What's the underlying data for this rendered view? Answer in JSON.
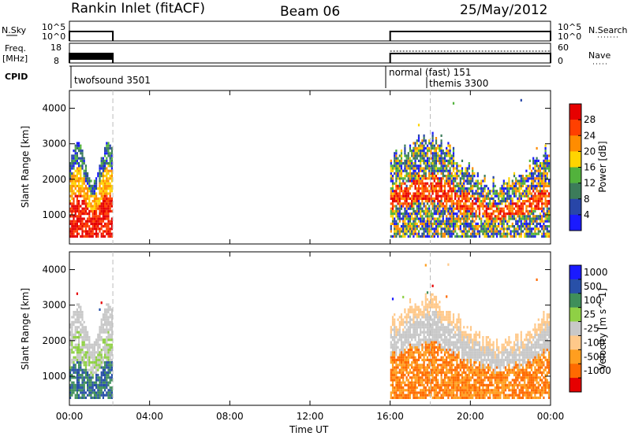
{
  "header": {
    "station": "Rankin Inlet (fitACF)",
    "beam": "Beam 06",
    "date": "25/May/2012"
  },
  "panels": {
    "nsky": {
      "left_label": "N.Sky",
      "right_label": "N.Search",
      "left_ticks": [
        "10^5",
        "10^0"
      ],
      "right_ticks": [
        "10^5",
        "10^0"
      ]
    },
    "freq": {
      "left_label_1": "Freq.",
      "left_label_2": "[MHz]",
      "right_label": "Nave",
      "left_ticks": [
        "18",
        "8"
      ],
      "right_ticks": [
        "60",
        "0"
      ]
    },
    "cpid": {
      "label": "CPID",
      "segments": [
        "twofsound 3501",
        "normal (fast) 151",
        "themis 3300"
      ]
    }
  },
  "x_axis": {
    "title": "Time UT",
    "ticks": [
      "00:00",
      "04:00",
      "08:00",
      "12:00",
      "16:00",
      "20:00",
      "00:00"
    ]
  },
  "colors": {
    "power": [
      "#1a1aff",
      "#2846a8",
      "#3c7c5a",
      "#52b23c",
      "#ffd400",
      "#ff8c00",
      "#ff4000",
      "#e60000"
    ],
    "velocity": [
      "#e60000",
      "#ff6a00",
      "#ff9e1f",
      "#ffc98a",
      "#c8c8c8",
      "#8fd045",
      "#3f8f5a",
      "#2850a8",
      "#1a1aff"
    ]
  },
  "chart_data": [
    {
      "type": "heatmap",
      "title": "Power",
      "ylabel": "Slant Range [km]",
      "xlabel": "Time UT",
      "xlim": [
        "00:00",
        "24:00"
      ],
      "ylim": [
        180,
        4500
      ],
      "yticks": [
        1000,
        2000,
        3000,
        4000
      ],
      "colorbar": {
        "label": "Power [dB]",
        "ticks": [
          "4",
          "8",
          "12",
          "16",
          "20",
          "24",
          "28"
        ],
        "range": [
          0,
          30
        ]
      },
      "data_segments": [
        {
          "start": "00:00",
          "end": "02:10"
        },
        {
          "start": "16:00",
          "end": "24:00"
        }
      ],
      "markers": [
        "02:10",
        "18:00"
      ]
    },
    {
      "type": "heatmap",
      "title": "Velocity",
      "ylabel": "Slant Range [km]",
      "xlabel": "Time UT",
      "xlim": [
        "00:00",
        "24:00"
      ],
      "ylim": [
        180,
        4500
      ],
      "yticks": [
        1000,
        2000,
        3000,
        4000
      ],
      "colorbar": {
        "label": "Velocity [m s^-1]",
        "ticks": [
          "1000",
          "500",
          "100",
          "25",
          "-25",
          "-100",
          "-500",
          "-1000"
        ]
      },
      "data_segments": [
        {
          "start": "00:00",
          "end": "02:10"
        },
        {
          "start": "16:00",
          "end": "24:00"
        }
      ],
      "markers": [
        "02:10",
        "18:00"
      ]
    }
  ]
}
